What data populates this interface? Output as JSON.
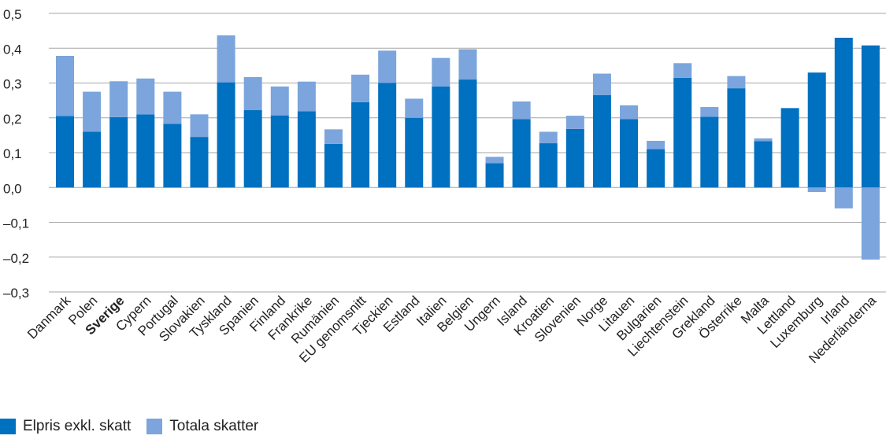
{
  "chart_data": {
    "type": "bar",
    "stacked": true,
    "categories": [
      "Danmark",
      "Polen",
      "Sverige",
      "Cypern",
      "Portugal",
      "Slovakien",
      "Tyskland",
      "Spanien",
      "Finland",
      "Frankrike",
      "Rumänien",
      "EU genomsnitt",
      "Tjeckien",
      "Estland",
      "Italien",
      "Belgien",
      "Ungern",
      "Island",
      "Kroatien",
      "Slovenien",
      "Norge",
      "Litauen",
      "Bulgarien",
      "Liechtenstein",
      "Grekland",
      "Österrike",
      "Malta",
      "Lettland",
      "Luxemburg",
      "Irland",
      "Nederländerna"
    ],
    "highlight_category": "Sverige",
    "series": [
      {
        "name": "Elpris exkl. skatt",
        "color": "#0070c0",
        "values": [
          0.205,
          0.16,
          0.202,
          0.21,
          0.183,
          0.145,
          0.302,
          0.222,
          0.207,
          0.219,
          0.125,
          0.245,
          0.3,
          0.2,
          0.29,
          0.31,
          0.07,
          0.196,
          0.127,
          0.168,
          0.265,
          0.196,
          0.11,
          0.315,
          0.203,
          0.285,
          0.133,
          0.228,
          0.33,
          0.43,
          0.408
        ]
      },
      {
        "name": "Totala skatter",
        "color": "#7ba5dc",
        "values": [
          0.173,
          0.115,
          0.103,
          0.103,
          0.092,
          0.065,
          0.135,
          0.095,
          0.083,
          0.085,
          0.042,
          0.079,
          0.093,
          0.055,
          0.082,
          0.087,
          0.018,
          0.051,
          0.033,
          0.038,
          0.062,
          0.04,
          0.024,
          0.042,
          0.028,
          0.035,
          0.008,
          0,
          -0.013,
          -0.06,
          -0.207
        ]
      }
    ],
    "ylim": [
      -0.3,
      0.5
    ],
    "yticks": [
      -0.3,
      -0.2,
      -0.1,
      0.0,
      0.1,
      0.2,
      0.3,
      0.4,
      0.5
    ],
    "ytick_labels": [
      "–0,3",
      "–0,2",
      "–0,1",
      "0,0",
      "0,1",
      "0,2",
      "0,3",
      "0,4",
      "0,5"
    ],
    "grid": true,
    "legend_position": "bottom-left"
  }
}
